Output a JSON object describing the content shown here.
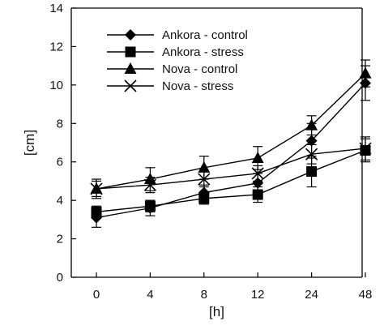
{
  "chart_data": {
    "type": "line",
    "title": "",
    "xlabel": "[h]",
    "ylabel": "[cm]",
    "categories": [
      "0",
      "4",
      "8",
      "12",
      "24",
      "48"
    ],
    "ylim": [
      0,
      14
    ],
    "yticks": [
      "0",
      "2",
      "4",
      "6",
      "8",
      "10",
      "12",
      "14"
    ],
    "grid": false,
    "legend_position": "top-left",
    "series": [
      {
        "name": "Ankora - control",
        "marker": "diamond",
        "values": [
          3.1,
          3.6,
          4.4,
          4.9,
          7.1,
          10.1
        ],
        "errors": [
          0.5,
          0.4,
          0.4,
          0.5,
          0.9,
          0.9
        ]
      },
      {
        "name": "Ankora - stress",
        "marker": "square",
        "values": [
          3.4,
          3.7,
          4.1,
          4.3,
          5.5,
          6.6
        ],
        "errors": [
          0.3,
          0.3,
          0.3,
          0.4,
          0.8,
          0.6
        ]
      },
      {
        "name": "Nova - control",
        "marker": "triangle",
        "values": [
          4.6,
          5.1,
          5.7,
          6.2,
          7.9,
          10.6
        ],
        "errors": [
          0.5,
          0.6,
          0.6,
          0.6,
          0.5,
          0.7
        ]
      },
      {
        "name": "Nova - stress",
        "marker": "x",
        "values": [
          4.6,
          4.8,
          5.1,
          5.4,
          6.4,
          6.7
        ],
        "errors": [
          0.4,
          0.4,
          0.4,
          0.4,
          0.5,
          0.6
        ]
      }
    ],
    "colors": {
      "series": "#000000",
      "axis": "#000000",
      "background": "#ffffff"
    }
  }
}
